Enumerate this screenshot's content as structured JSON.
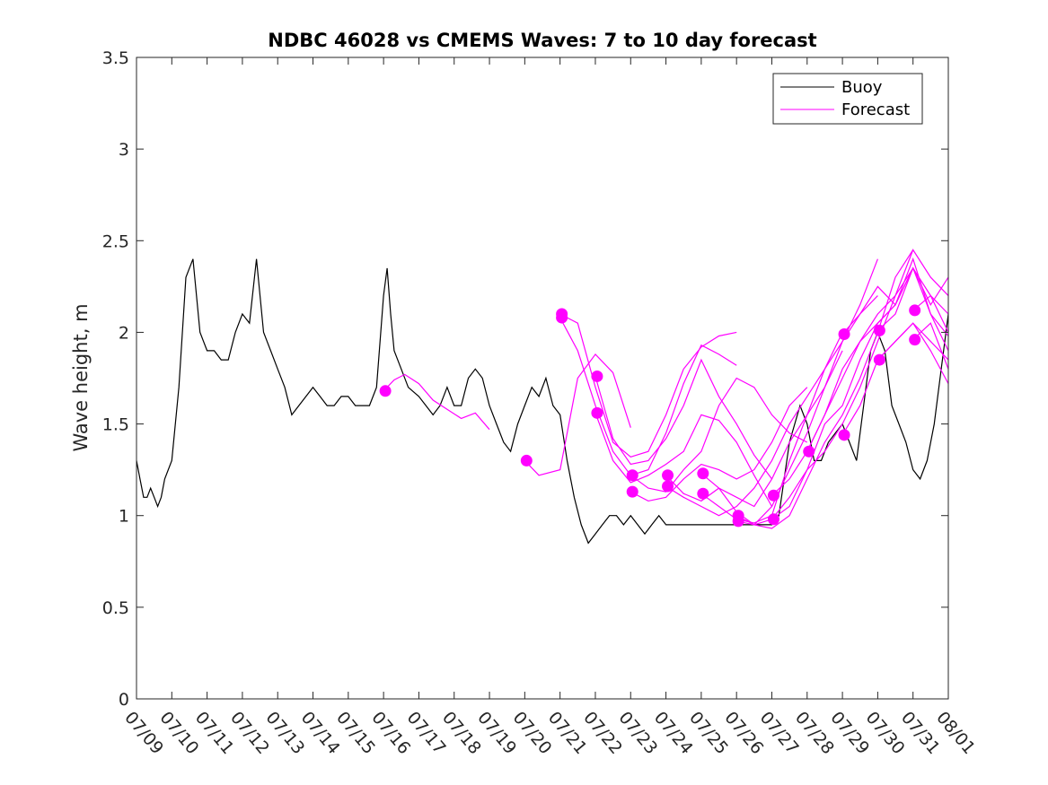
{
  "chart_data": {
    "type": "line",
    "title": "NDBC 46028 vs CMEMS Waves: 7 to 10 day forecast",
    "xlabel": "",
    "ylabel": "Wave height, m",
    "ylim": [
      0,
      3.5
    ],
    "xlim": [
      "07/09",
      "08/01"
    ],
    "x_tick_labels": [
      "07/09",
      "07/10",
      "07/11",
      "07/12",
      "07/13",
      "07/14",
      "07/15",
      "07/16",
      "07/17",
      "07/18",
      "07/19",
      "07/20",
      "07/21",
      "07/22",
      "07/23",
      "07/24",
      "07/25",
      "07/26",
      "07/27",
      "07/28",
      "07/29",
      "07/30",
      "07/31",
      "08/01"
    ],
    "y_tick_labels": [
      "0",
      "0.5",
      "1",
      "1.5",
      "2",
      "2.5",
      "3",
      "3.5"
    ],
    "grid": false,
    "legend_position": "top-right",
    "colors": {
      "buoy": "#000000",
      "forecast": "#ff00ff"
    },
    "buoy_series": {
      "name": "Buoy",
      "x_days": [
        0,
        0.1,
        0.2,
        0.3,
        0.4,
        0.5,
        0.6,
        0.7,
        0.8,
        1.0,
        1.2,
        1.4,
        1.6,
        1.8,
        2.0,
        2.2,
        2.4,
        2.6,
        2.8,
        3.0,
        3.2,
        3.4,
        3.6,
        3.8,
        4.0,
        4.2,
        4.4,
        4.6,
        4.8,
        5.0,
        5.2,
        5.4,
        5.6,
        5.8,
        6.0,
        6.2,
        6.4,
        6.6,
        6.8,
        7.0,
        7.1,
        7.2,
        7.3,
        7.5,
        7.7,
        8.0,
        8.2,
        8.4,
        8.6,
        8.8,
        9.0,
        9.2,
        9.4,
        9.6,
        9.8,
        10.0,
        10.2,
        10.4,
        10.6,
        10.8,
        11.0,
        11.2,
        11.4,
        11.6,
        11.8,
        12.0,
        12.2,
        12.4,
        12.6,
        12.8,
        13.0,
        13.2,
        13.4,
        13.6,
        13.8,
        14.0,
        14.2,
        14.4,
        14.6,
        14.8,
        15.0,
        15.5,
        16.0,
        16.5,
        17.0,
        17.5,
        18.0,
        18.2,
        18.5,
        18.8,
        19.0,
        19.2,
        19.4,
        19.6,
        19.8,
        20.0,
        20.2,
        20.4,
        20.6,
        20.8,
        21.0,
        21.2,
        21.4,
        21.6,
        21.8,
        22.0,
        22.2,
        22.4,
        22.6,
        22.8,
        23.0
      ],
      "values": [
        1.3,
        1.2,
        1.1,
        1.1,
        1.15,
        1.1,
        1.05,
        1.1,
        1.2,
        1.3,
        1.7,
        2.3,
        2.4,
        2.0,
        1.9,
        1.9,
        1.85,
        1.85,
        2.0,
        2.1,
        2.05,
        2.4,
        2.0,
        1.9,
        1.8,
        1.7,
        1.55,
        1.6,
        1.65,
        1.7,
        1.65,
        1.6,
        1.6,
        1.65,
        1.65,
        1.6,
        1.6,
        1.6,
        1.7,
        2.2,
        2.35,
        2.1,
        1.9,
        1.8,
        1.7,
        1.65,
        1.6,
        1.55,
        1.6,
        1.7,
        1.6,
        1.6,
        1.75,
        1.8,
        1.75,
        1.6,
        1.5,
        1.4,
        1.35,
        1.5,
        1.6,
        1.7,
        1.65,
        1.75,
        1.6,
        1.55,
        1.3,
        1.1,
        0.95,
        0.85,
        0.9,
        0.95,
        1.0,
        1.0,
        0.95,
        1.0,
        0.95,
        0.9,
        0.95,
        1.0,
        0.95,
        0.95,
        0.95,
        0.95,
        0.95,
        0.95,
        0.95,
        1.0,
        1.4,
        1.6,
        1.5,
        1.3,
        1.3,
        1.4,
        1.45,
        1.5,
        1.4,
        1.3,
        1.6,
        1.9,
        2.0,
        1.9,
        1.6,
        1.5,
        1.4,
        1.25,
        1.2,
        1.3,
        1.5,
        1.8,
        2.1
      ]
    },
    "forecast_series": [
      {
        "name": "Forecast",
        "x_days": [
          7.0,
          7.3,
          7.6,
          8.0,
          8.4,
          8.8,
          9.2,
          9.6,
          10.0
        ],
        "values": [
          1.68,
          1.74,
          1.77,
          1.72,
          1.63,
          1.58,
          1.53,
          1.56,
          1.47
        ]
      },
      {
        "x_days": [
          11.0,
          11.4,
          12.0,
          12.5,
          13.0,
          13.5,
          14.0
        ],
        "values": [
          1.3,
          1.22,
          1.25,
          1.75,
          1.88,
          1.78,
          1.48
        ]
      },
      {
        "x_days": [
          12.0,
          12.5,
          13.0,
          13.5,
          14.0,
          14.5,
          15.0,
          15.5,
          16.0,
          16.5,
          17.0
        ],
        "values": [
          2.1,
          2.05,
          1.7,
          1.4,
          1.32,
          1.35,
          1.55,
          1.8,
          1.92,
          1.98,
          2.0
        ]
      },
      {
        "x_days": [
          12.0,
          12.5,
          13.0,
          13.5,
          14.0,
          14.5,
          15.0,
          15.5,
          16.0,
          16.5,
          17.0
        ],
        "values": [
          2.08,
          1.9,
          1.6,
          1.35,
          1.22,
          1.25,
          1.45,
          1.72,
          1.93,
          1.88,
          1.82
        ]
      },
      {
        "x_days": [
          13.0,
          13.5,
          14.0,
          14.5,
          15.0,
          15.5,
          16.0,
          16.5,
          17.0,
          17.5,
          18.0
        ],
        "values": [
          1.76,
          1.42,
          1.28,
          1.3,
          1.42,
          1.6,
          1.85,
          1.65,
          1.5,
          1.33,
          1.2
        ]
      },
      {
        "x_days": [
          13.0,
          13.5,
          14.0,
          14.5,
          15.0,
          15.5,
          16.0,
          16.5,
          17.0,
          17.5,
          18.0
        ],
        "values": [
          1.56,
          1.3,
          1.18,
          1.22,
          1.28,
          1.35,
          1.55,
          1.52,
          1.4,
          1.22,
          1.05
        ]
      },
      {
        "x_days": [
          14.0,
          14.5,
          15.0,
          15.5,
          16.0,
          16.5,
          17.0,
          17.5,
          18.0,
          18.5,
          19.0
        ],
        "values": [
          1.22,
          1.15,
          1.13,
          1.25,
          1.35,
          1.6,
          1.75,
          1.7,
          1.55,
          1.45,
          1.4
        ]
      },
      {
        "x_days": [
          14.0,
          14.5,
          15.0,
          15.5,
          16.0,
          16.5,
          17.0,
          17.5,
          18.0,
          18.5,
          19.0
        ],
        "values": [
          1.13,
          1.08,
          1.1,
          1.2,
          1.28,
          1.25,
          1.2,
          1.25,
          1.4,
          1.6,
          1.7
        ]
      },
      {
        "x_days": [
          15.0,
          15.5,
          16.0,
          16.5,
          17.0,
          17.5,
          18.0,
          18.5,
          19.0,
          19.5,
          20.0
        ],
        "values": [
          1.22,
          1.12,
          1.08,
          1.15,
          1.1,
          1.05,
          1.2,
          1.4,
          1.55,
          1.7,
          1.9
        ]
      },
      {
        "x_days": [
          15.0,
          15.5,
          16.0,
          16.5,
          17.0,
          17.5,
          18.0,
          18.5,
          19.0,
          19.5,
          20.0
        ],
        "values": [
          1.16,
          1.1,
          1.05,
          1.0,
          1.05,
          1.15,
          1.3,
          1.5,
          1.65,
          1.8,
          2.0
        ]
      },
      {
        "x_days": [
          16.0,
          16.5,
          17.0,
          17.5,
          18.0,
          18.5,
          19.0,
          19.5,
          20.0,
          20.5,
          21.0
        ],
        "values": [
          1.23,
          1.15,
          1.02,
          0.95,
          1.05,
          1.25,
          1.45,
          1.7,
          1.95,
          2.15,
          2.4
        ]
      },
      {
        "x_days": [
          16.0,
          16.5,
          17.0,
          17.5,
          18.0,
          18.5,
          19.0,
          19.5,
          20.0,
          20.5,
          21.0
        ],
        "values": [
          1.12,
          1.05,
          0.98,
          0.96,
          1.0,
          1.3,
          1.55,
          1.8,
          1.95,
          2.1,
          2.2
        ]
      },
      {
        "x_days": [
          17.0,
          17.5,
          18.0,
          18.5,
          19.0,
          19.5,
          20.0,
          20.5,
          21.0,
          21.5,
          22.0
        ],
        "values": [
          1.0,
          0.95,
          0.93,
          1.0,
          1.2,
          1.4,
          1.55,
          1.75,
          2.0,
          2.3,
          2.45
        ]
      },
      {
        "x_days": [
          17.0,
          17.5,
          18.0,
          18.5,
          19.0,
          19.5,
          20.0,
          20.5,
          21.0,
          21.5,
          22.0
        ],
        "values": [
          0.97,
          0.95,
          0.98,
          1.1,
          1.25,
          1.35,
          1.5,
          1.7,
          1.95,
          2.2,
          2.35
        ]
      },
      {
        "x_days": [
          18.0,
          18.5,
          19.0,
          19.5,
          20.0,
          20.5,
          21.0,
          21.5,
          22.0,
          22.5,
          23.0
        ],
        "values": [
          1.11,
          1.2,
          1.35,
          1.55,
          1.75,
          1.95,
          2.1,
          2.2,
          2.45,
          2.3,
          2.2
        ]
      },
      {
        "x_days": [
          18.0,
          18.5,
          19.0,
          19.5,
          20.0,
          20.5,
          21.0,
          21.5,
          22.0,
          22.5,
          23.0
        ],
        "values": [
          0.98,
          1.05,
          1.25,
          1.5,
          1.6,
          1.85,
          2.05,
          2.15,
          2.35,
          2.2,
          2.1
        ]
      },
      {
        "x_days": [
          19.0,
          19.5,
          20.0,
          20.5,
          21.0,
          21.5,
          22.0,
          22.5,
          23.0
        ],
        "values": [
          1.35,
          1.55,
          1.8,
          1.95,
          2.05,
          2.15,
          2.4,
          2.1,
          1.98
        ]
      },
      {
        "x_days": [
          20.0,
          20.5,
          21.0,
          21.5,
          22.0,
          22.5,
          23.0
        ],
        "values": [
          1.99,
          2.1,
          2.25,
          2.15,
          2.35,
          2.1,
          1.9
        ]
      },
      {
        "x_days": [
          20.0,
          20.5,
          21.0,
          21.5,
          22.0,
          22.5,
          23.0
        ],
        "values": [
          1.44,
          1.6,
          1.85,
          1.95,
          2.05,
          1.95,
          1.85
        ]
      },
      {
        "x_days": [
          21.0,
          21.5,
          22.0,
          22.5,
          23.0
        ],
        "values": [
          2.01,
          2.1,
          2.35,
          2.15,
          2.3
        ]
      },
      {
        "x_days": [
          21.0,
          21.5,
          22.0,
          22.5,
          23.0
        ],
        "values": [
          1.85,
          1.95,
          2.05,
          1.9,
          1.72
        ]
      },
      {
        "x_days": [
          22.0,
          22.5,
          23.0
        ],
        "values": [
          2.12,
          2.2,
          2.0
        ]
      },
      {
        "x_days": [
          22.0,
          22.5,
          23.0
        ],
        "values": [
          1.96,
          2.05,
          1.8
        ]
      }
    ],
    "forecast_start_markers": {
      "x_days": [
        7.05,
        11.05,
        12.05,
        12.05,
        13.05,
        13.05,
        14.05,
        14.05,
        15.05,
        15.05,
        16.05,
        16.05,
        17.05,
        17.05,
        18.05,
        18.05,
        19.05,
        20.05,
        20.05,
        21.05,
        21.05,
        22.05,
        22.05
      ],
      "values": [
        1.68,
        1.3,
        2.1,
        2.08,
        1.76,
        1.56,
        1.22,
        1.13,
        1.22,
        1.16,
        1.23,
        1.12,
        1.0,
        0.97,
        1.11,
        0.98,
        1.35,
        1.99,
        1.44,
        2.01,
        1.85,
        2.12,
        1.96
      ]
    },
    "legend": [
      {
        "label": "Buoy",
        "color": "#000000"
      },
      {
        "label": "Forecast",
        "color": "#ff00ff"
      }
    ]
  }
}
